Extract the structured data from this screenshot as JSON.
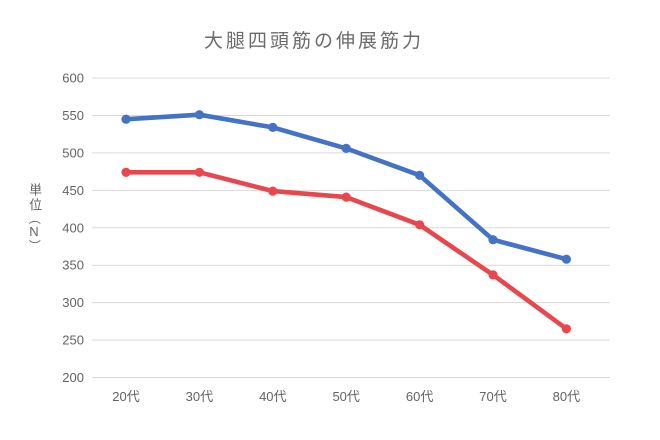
{
  "chart_data": {
    "type": "line",
    "title": "大腿四頭筋の伸展筋力",
    "categories": [
      "20代",
      "30代",
      "40代",
      "50代",
      "60代",
      "70代",
      "80代"
    ],
    "series": [
      {
        "name": "blue",
        "color": "#4472c4",
        "values": [
          545,
          551,
          534,
          506,
          470,
          384,
          358
        ]
      },
      {
        "name": "red",
        "color": "#e8484d",
        "values": [
          474,
          474,
          449,
          441,
          404,
          337,
          265
        ]
      }
    ],
    "y_axis": {
      "label": "単位",
      "unit_open": "（",
      "unit": "N",
      "unit_close": "）",
      "min": 200,
      "max": 600,
      "tick_step": 50,
      "tick_labels": [
        "600",
        "550",
        "500",
        "450",
        "400",
        "350",
        "300",
        "250",
        "200"
      ]
    },
    "grid": true,
    "legend": "none",
    "colors": {
      "grid": "#d9d9d9",
      "axis_text": "#646464",
      "title_text": "#6b6b6b",
      "background": "#ffffff"
    }
  }
}
